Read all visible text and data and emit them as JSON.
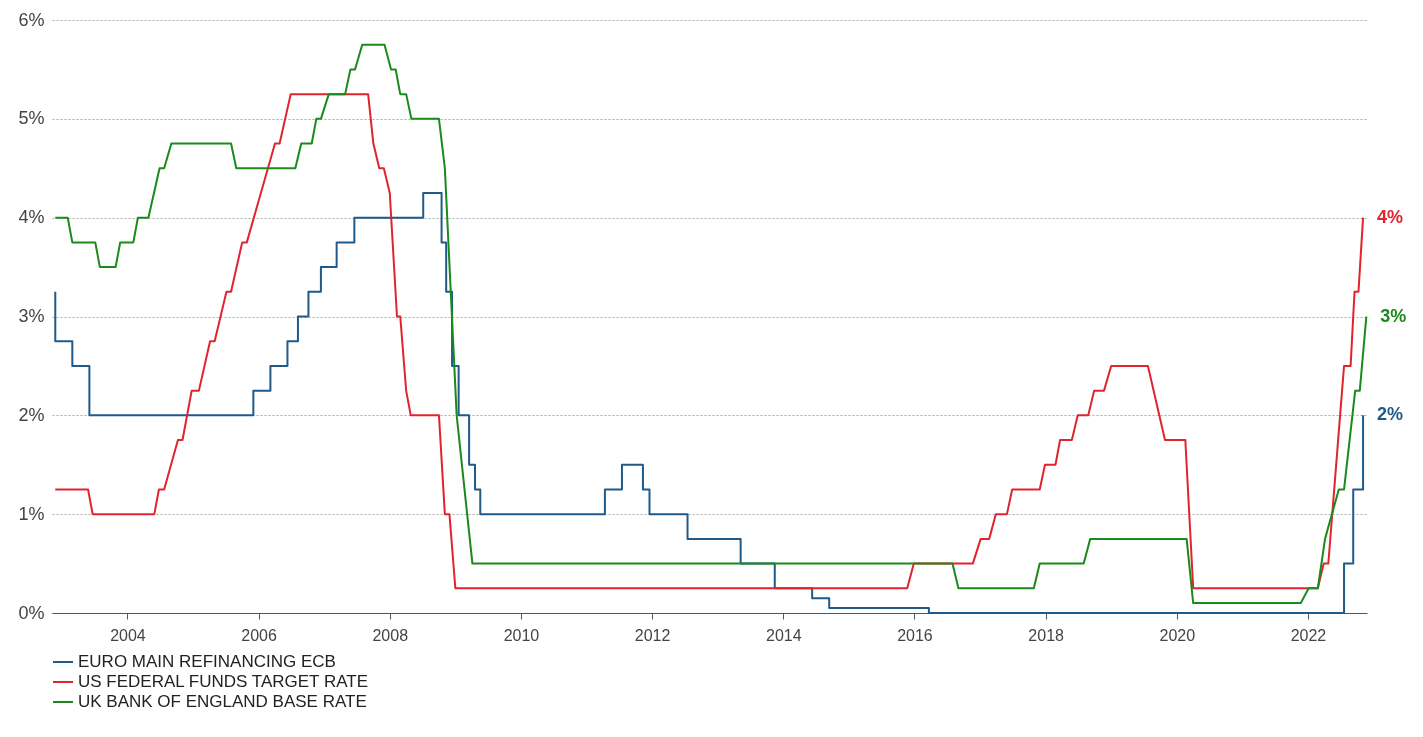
{
  "chart_data": {
    "type": "line",
    "xlim": [
      2002.85,
      2022.9
    ],
    "xticks": [
      2004,
      2006,
      2008,
      2010,
      2012,
      2014,
      2016,
      2018,
      2020,
      2022
    ],
    "ylim": [
      0,
      6
    ],
    "yticks": [
      {
        "value": 0,
        "label": "0%"
      },
      {
        "value": 1,
        "label": "1%"
      },
      {
        "value": 2,
        "label": "2%"
      },
      {
        "value": 3,
        "label": "3%"
      },
      {
        "value": 4,
        "label": "4%"
      },
      {
        "value": 5,
        "label": "5%"
      },
      {
        "value": 6,
        "label": "6%"
      }
    ],
    "grid": "y",
    "legend": "bottom left",
    "line_style": "solid",
    "series": [
      {
        "name": "EURO MAIN REFINANCING ECB",
        "color": "#1f5a8a",
        "x": [
          2002.9,
          2002.9,
          2003.16,
          2003.16,
          2003.42,
          2003.42,
          2005.92,
          2005.92,
          2006.18,
          2006.18,
          2006.44,
          2006.44,
          2006.6,
          2006.6,
          2006.76,
          2006.76,
          2006.95,
          2006.95,
          2007.19,
          2007.19,
          2007.46,
          2007.46,
          2008.51,
          2008.51,
          2008.79,
          2008.79,
          2008.86,
          2008.86,
          2008.95,
          2008.95,
          2009.05,
          2009.05,
          2009.21,
          2009.21,
          2009.3,
          2009.3,
          2009.38,
          2009.38,
          2011.28,
          2011.28,
          2011.54,
          2011.54,
          2011.86,
          2011.86,
          2011.96,
          2011.96,
          2012.54,
          2012.54,
          2013.35,
          2013.35,
          2013.87,
          2013.87,
          2014.44,
          2014.44,
          2014.7,
          2014.7,
          2016.22,
          2016.22,
          2022.55,
          2022.55,
          2022.69,
          2022.69,
          2022.84,
          2022.84
        ],
        "values": [
          3.25,
          2.75,
          2.75,
          2.5,
          2.5,
          2.0,
          2.0,
          2.25,
          2.25,
          2.5,
          2.5,
          2.75,
          2.75,
          3.0,
          3.0,
          3.25,
          3.25,
          3.5,
          3.5,
          3.75,
          3.75,
          4.0,
          4.0,
          4.25,
          4.25,
          3.75,
          3.75,
          3.25,
          3.25,
          2.5,
          2.5,
          2.0,
          2.0,
          1.5,
          1.5,
          1.25,
          1.25,
          1.0,
          1.0,
          1.25,
          1.25,
          1.5,
          1.5,
          1.25,
          1.25,
          1.0,
          1.0,
          0.75,
          0.75,
          0.5,
          0.5,
          0.25,
          0.25,
          0.15,
          0.15,
          0.05,
          0.05,
          0,
          0,
          0.5,
          0.5,
          1.25,
          1.25,
          2.0
        ],
        "value_labels": [
          null,
          null,
          null,
          null,
          null,
          null,
          null,
          null,
          null,
          null,
          null,
          null,
          null,
          null,
          null,
          null,
          null,
          null,
          null,
          null,
          null,
          null,
          null,
          null,
          null,
          null,
          null,
          null,
          null,
          null,
          null,
          null,
          null,
          null,
          null,
          null,
          null,
          null,
          null,
          null,
          null,
          null,
          null,
          null,
          null,
          null,
          null,
          null,
          null,
          null,
          null,
          null,
          null,
          null,
          null,
          null,
          null,
          null,
          null,
          null,
          null,
          null,
          null,
          "2%"
        ]
      },
      {
        "name": "US FEDERAL FUNDS TARGET RATE",
        "color": "#e0242e",
        "x": [
          2002.9,
          2003.4,
          2003.47,
          2004.41,
          2004.48,
          2004.56,
          2004.77,
          2004.84,
          2004.98,
          2005.09,
          2005.26,
          2005.33,
          2005.51,
          2005.58,
          2005.75,
          2005.82,
          2006.25,
          2006.32,
          2006.49,
          2007.67,
          2007.75,
          2007.84,
          2007.91,
          2008.0,
          2008.11,
          2008.16,
          2008.25,
          2008.32,
          2008.75,
          2008.84,
          2008.91,
          2009.0,
          2015.89,
          2015.99,
          2016.89,
          2017.01,
          2017.14,
          2017.24,
          2017.41,
          2017.49,
          2017.91,
          2017.99,
          2018.15,
          2018.22,
          2018.4,
          2018.49,
          2018.65,
          2018.74,
          2018.89,
          2019.0,
          2019.56,
          2019.82,
          2020.13,
          2020.25,
          2022.15,
          2022.24,
          2022.31,
          2022.55,
          2022.65,
          2022.71,
          2022.77,
          2022.84
        ],
        "values": [
          1.25,
          1.25,
          1.0,
          1.0,
          1.25,
          1.25,
          1.75,
          1.75,
          2.25,
          2.25,
          2.75,
          2.75,
          3.25,
          3.25,
          3.75,
          3.75,
          4.75,
          4.75,
          5.25,
          5.25,
          4.75,
          4.5,
          4.5,
          4.25,
          3.0,
          3.0,
          2.25,
          2.0,
          2.0,
          1.0,
          1.0,
          0.25,
          0.25,
          0.5,
          0.5,
          0.75,
          0.75,
          1.0,
          1.0,
          1.25,
          1.25,
          1.5,
          1.5,
          1.75,
          1.75,
          2.0,
          2.0,
          2.25,
          2.25,
          2.5,
          2.5,
          1.75,
          1.75,
          0.25,
          0.25,
          0.5,
          0.5,
          2.5,
          2.5,
          3.25,
          3.25,
          4.0
        ],
        "value_labels": [
          null,
          null,
          null,
          null,
          null,
          null,
          null,
          null,
          null,
          null,
          null,
          null,
          null,
          null,
          null,
          null,
          null,
          null,
          null,
          null,
          null,
          null,
          null,
          null,
          null,
          null,
          null,
          null,
          null,
          null,
          null,
          null,
          null,
          null,
          null,
          null,
          null,
          null,
          null,
          null,
          null,
          null,
          null,
          null,
          null,
          null,
          null,
          null,
          null,
          null,
          null,
          null,
          null,
          null,
          null,
          null,
          null,
          null,
          null,
          null,
          null,
          "4%"
        ]
      },
      {
        "name": "UK BANK OF ENGLAND BASE RATE",
        "color": "#1a8a1a",
        "x": [
          2002.9,
          2003.09,
          2003.16,
          2003.51,
          2003.58,
          2003.82,
          2003.89,
          2004.09,
          2004.16,
          2004.32,
          2004.49,
          2004.56,
          2004.67,
          2005.58,
          2005.66,
          2006.56,
          2006.65,
          2006.81,
          2006.88,
          2006.95,
          2007.07,
          2007.32,
          2007.4,
          2007.47,
          2007.58,
          2007.92,
          2008.02,
          2008.09,
          2008.16,
          2008.25,
          2008.33,
          2008.75,
          2008.84,
          2009.02,
          2009.26,
          2016.58,
          2016.67,
          2017.82,
          2017.91,
          2018.58,
          2018.68,
          2020.15,
          2020.25,
          2021.89,
          2022.01,
          2022.15,
          2022.26,
          2022.47,
          2022.55,
          2022.72,
          2022.79,
          2022.89
        ],
        "values": [
          4.0,
          4.0,
          3.75,
          3.75,
          3.5,
          3.5,
          3.75,
          3.75,
          4.0,
          4.0,
          4.5,
          4.5,
          4.75,
          4.75,
          4.5,
          4.5,
          4.75,
          4.75,
          5.0,
          5.0,
          5.25,
          5.25,
          5.5,
          5.5,
          5.75,
          5.75,
          5.5,
          5.5,
          5.25,
          5.25,
          5.0,
          5.0,
          4.5,
          2.0,
          0.5,
          0.5,
          0.25,
          0.25,
          0.5,
          0.5,
          0.75,
          0.75,
          0.1,
          0.1,
          0.25,
          0.25,
          0.75,
          1.25,
          1.25,
          2.25,
          2.25,
          3.0
        ],
        "value_labels": [
          null,
          null,
          null,
          null,
          null,
          null,
          null,
          null,
          null,
          null,
          null,
          null,
          null,
          null,
          null,
          null,
          null,
          null,
          null,
          null,
          null,
          null,
          null,
          null,
          null,
          null,
          null,
          null,
          null,
          null,
          null,
          null,
          null,
          null,
          null,
          null,
          null,
          null,
          null,
          null,
          null,
          null,
          null,
          null,
          null,
          null,
          null,
          null,
          null,
          null,
          null,
          "3%"
        ]
      }
    ]
  }
}
